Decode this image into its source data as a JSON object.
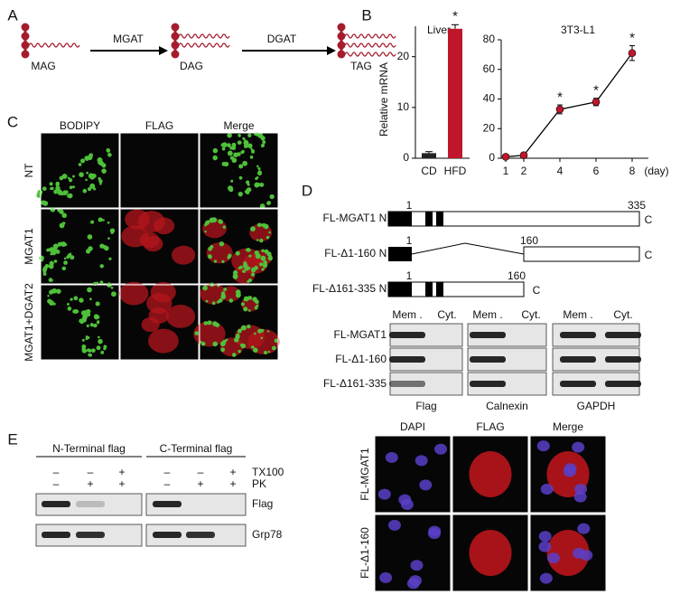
{
  "panel_labels": [
    "A",
    "B",
    "C",
    "D",
    "E"
  ],
  "pathway": {
    "substrates": [
      "MAG",
      "DAG",
      "TAG"
    ],
    "enzymes": [
      "MGAT",
      "DGAT"
    ]
  },
  "chart_data": [
    {
      "type": "bar",
      "title": "Liver",
      "y_label": "Relative mRNA",
      "categories": [
        "CD",
        "HFD"
      ],
      "values": [
        1,
        25.5
      ],
      "errors": [
        0.3,
        0.8
      ],
      "significance": [
        null,
        "*"
      ],
      "colors": [
        "#222222",
        "#c0162c"
      ],
      "ylim": [
        0,
        26
      ],
      "yticks": [
        0,
        10,
        20
      ]
    },
    {
      "type": "line",
      "title": "3T3-L1",
      "x_label": "(day)",
      "x": [
        1,
        2,
        4,
        6,
        8
      ],
      "values": [
        1,
        2,
        33,
        38,
        71
      ],
      "errors": [
        1,
        1,
        3,
        2.5,
        5
      ],
      "significance": [
        null,
        null,
        "*",
        "*",
        "*"
      ],
      "color": "#c0162c",
      "line_color": "#000000",
      "xlim": [
        1,
        8
      ],
      "xticks": [
        1,
        2,
        4,
        6,
        8
      ],
      "ylim": [
        0,
        80
      ],
      "yticks": [
        0,
        20,
        40,
        60,
        80
      ]
    }
  ],
  "panel_c": {
    "columns": [
      "BODIPY",
      "FLAG",
      "Merge"
    ],
    "rows": [
      "NT",
      "MGAT1",
      "MGAT1+DGAT2"
    ]
  },
  "panel_d": {
    "n_term": "N",
    "c_term": "C",
    "constructs": [
      {
        "name": "FL-MGAT1",
        "start": "1",
        "end": "335"
      },
      {
        "name": "FL-Δ1-160",
        "start": "1",
        "end": "160"
      },
      {
        "name": "FL-Δ161-335",
        "start": "1",
        "end": "160"
      }
    ],
    "fractions": [
      "Mem .",
      "Cyt.",
      "Mem .",
      "Cyt.",
      "Mem .",
      "Cyt."
    ],
    "antibodies": [
      "Flag",
      "Calnexin",
      "GAPDH"
    ],
    "if_columns": [
      "DAPI",
      "FLAG",
      "Merge"
    ],
    "if_rows": [
      "FL-MGAT1",
      "FL-Δ1-160"
    ]
  },
  "panel_e": {
    "groups": [
      "N-Terminal flag",
      "C-Terminal flag"
    ],
    "treatments": [
      {
        "name": "TX100",
        "lanes": [
          "–",
          "–",
          "+",
          "–",
          "–",
          "+"
        ]
      },
      {
        "name": "PK",
        "lanes": [
          "–",
          "+",
          "+",
          "–",
          "+",
          "+"
        ]
      }
    ],
    "blots": [
      "Flag",
      "Grp78"
    ]
  }
}
